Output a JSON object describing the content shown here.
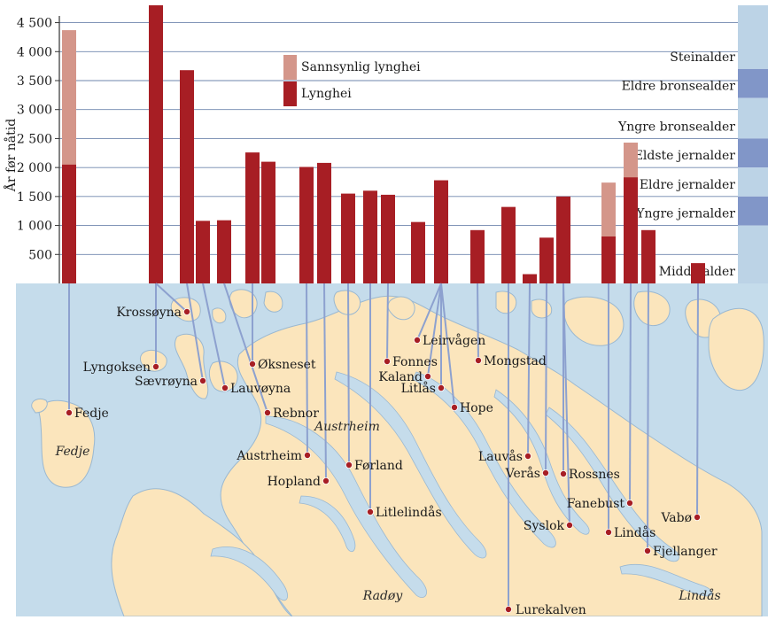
{
  "chart_data": {
    "type": "bar",
    "ylabel": "År før nåtid",
    "ylim": [
      0,
      4800
    ],
    "yticks": [
      500,
      1000,
      1500,
      2000,
      2500,
      3000,
      3500,
      4000,
      4500
    ],
    "ytick_labels": [
      "500",
      "1 000",
      "1 500",
      "2 000",
      "2 500",
      "3 000",
      "3 500",
      "4 000",
      "4 500"
    ],
    "grid": true,
    "legend": [
      {
        "name": "Sannsynlig lynghei",
        "color": "#d4968a"
      },
      {
        "name": "Lynghei",
        "color": "#a71e24"
      }
    ],
    "legend_position": "top-center",
    "series": [
      {
        "name": "Lynghei",
        "color": "#a71e24",
        "values": [
          2050,
          4800,
          3680,
          1080,
          1090,
          2260,
          2100,
          2010,
          2080,
          1550,
          1600,
          1530,
          1060,
          1780,
          920,
          1320,
          160,
          790,
          1500,
          810,
          1830,
          920,
          350
        ]
      },
      {
        "name": "Sannsynlig lynghei",
        "color": "#d4968a",
        "values": [
          4370,
          null,
          null,
          null,
          null,
          null,
          null,
          null,
          null,
          null,
          null,
          null,
          null,
          null,
          null,
          null,
          null,
          null,
          null,
          1740,
          2430,
          null,
          null
        ]
      }
    ],
    "periods": [
      {
        "name": "Steinalder",
        "from": 4800,
        "to": 3700
      },
      {
        "name": "Eldre bronsealder",
        "from": 3700,
        "to": 3200
      },
      {
        "name": "Yngre bronsealder",
        "from": 3200,
        "to": 2500
      },
      {
        "name": "Eldste jernalder",
        "from": 2500,
        "to": 2000
      },
      {
        "name": "Eldre jernalder",
        "from": 2000,
        "to": 1500
      },
      {
        "name": "Yngre jernalder",
        "from": 1500,
        "to": 1000
      },
      {
        "name": "Middelalder",
        "from": 1000,
        "to": 0
      }
    ],
    "period_colors": [
      "#bcd3e6",
      "#8196c8"
    ]
  },
  "map": {
    "colors": {
      "sea": "#c5dceb",
      "land": "#fbe5bc",
      "coast": "#9ab8d1",
      "line": "#8da1cf",
      "dot": "#a71e24"
    },
    "sites": [
      "Fedje",
      "Krossøyna",
      "Lyngoksen",
      "Sævrøyna",
      "Lauvøyna",
      "Øksneset",
      "Rebnor",
      "Austrheim",
      "Hopland",
      "Førland",
      "Litlelindås",
      "Fonnes",
      "Leirvågen",
      "Kaland",
      "Litlås",
      "Hope",
      "Mongstad",
      "Lauvås",
      "Lurekalven",
      "Verås",
      "Rossnes",
      "Syslok",
      "Fanebust",
      "Lindås",
      "Fjellanger",
      "Vabø"
    ],
    "region_labels": [
      "Fedje",
      "Austrheim",
      "Radøy",
      "Lindås"
    ]
  }
}
